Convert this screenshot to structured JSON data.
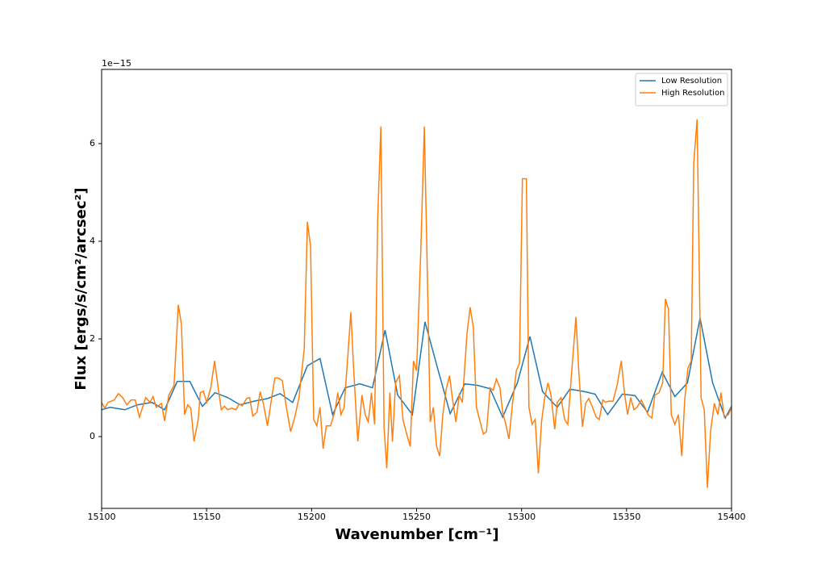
{
  "chart_data": {
    "type": "line",
    "xlabel": "Wavenumber [cm⁻¹]",
    "ylabel": "Flux [ergs/s/cm²/arcsec²]",
    "y_offset_label": "1e−15",
    "xlim": [
      15100,
      15400
    ],
    "xticks": [
      15100,
      15150,
      15200,
      15250,
      15300,
      15350,
      15400
    ],
    "ylim": [
      -1.47,
      7.52
    ],
    "yticks": [
      0,
      2,
      4,
      6
    ],
    "legend": "upper right",
    "grid": false,
    "series": [
      {
        "name": "Low Resolution",
        "color": "#1f77b4",
        "x": [
          15100,
          15104,
          15111,
          15117,
          15124,
          15130,
          15136,
          15142,
          15148,
          15154,
          15160,
          15166,
          15172,
          15179,
          15185,
          15191,
          15198,
          15204,
          15210,
          15216,
          15223,
          15229,
          15235,
          15241,
          15248,
          15254,
          15260,
          15266,
          15273,
          15279,
          15285,
          15291,
          15298,
          15304,
          15310,
          15317,
          15323,
          15329,
          15335,
          15341,
          15348,
          15354,
          15360,
          15367,
          15373,
          15379,
          15385,
          15391,
          15397,
          15400
        ],
        "values": [
          0.55,
          0.6,
          0.55,
          0.65,
          0.7,
          0.55,
          1.13,
          1.13,
          0.62,
          0.9,
          0.8,
          0.65,
          0.72,
          0.78,
          0.88,
          0.7,
          1.45,
          1.6,
          0.45,
          1.0,
          1.08,
          1.0,
          2.18,
          0.85,
          0.45,
          2.35,
          1.4,
          0.47,
          1.08,
          1.05,
          0.98,
          0.4,
          1.1,
          2.05,
          0.92,
          0.6,
          0.97,
          0.93,
          0.87,
          0.45,
          0.87,
          0.84,
          0.5,
          1.32,
          0.82,
          1.1,
          2.43,
          1.1,
          0.38,
          0.62
        ]
      },
      {
        "name": "High Resolution",
        "color": "#ff7f0e",
        "x": [
          15100,
          15101.5,
          15103,
          15106,
          15108,
          15110,
          15112,
          15114,
          15116,
          15118,
          15121,
          15123,
          15124.5,
          15126,
          15128.5,
          15130,
          15132,
          15134.5,
          15136.5,
          15138,
          15139.5,
          15141,
          15142.5,
          15144,
          15146,
          15147,
          15148.5,
          15150,
          15152,
          15153.8,
          15155.5,
          15157,
          15158.5,
          15160,
          15162,
          15164,
          15165.5,
          15167,
          15169,
          15170.5,
          15172,
          15174,
          15175.5,
          15177,
          15179,
          15181,
          15182.5,
          15184,
          15186,
          15188,
          15190,
          15192,
          15194,
          15196.5,
          15198,
          15199.5,
          15201,
          15202.5,
          15204,
          15205.5,
          15207,
          15209,
          15211,
          15212.5,
          15214,
          15215.5,
          15217,
          15218.7,
          15220,
          15222,
          15224,
          15225.5,
          15227,
          15228.5,
          15230,
          15231.5,
          15233,
          15234.5,
          15235.8,
          15237.3,
          15238.5,
          15240,
          15241.8,
          15243.5,
          15245.3,
          15247,
          15248.5,
          15250,
          15252,
          15253.7,
          15255,
          15256.5,
          15258,
          15259.5,
          15261,
          15262.5,
          15264,
          15265.7,
          15267,
          15268.7,
          15270.3,
          15271.8,
          15274,
          15275.5,
          15277,
          15278.5,
          15280,
          15281.8,
          15283.3,
          15285,
          15286.5,
          15288,
          15289.7,
          15291,
          15292.5,
          15294,
          15295.5,
          15297.5,
          15299,
          15300.4,
          15302.3,
          15303.5,
          15305,
          15306.5,
          15308,
          15309.5,
          15311,
          15312.6,
          15314,
          15315.8,
          15317,
          15318.8,
          15320.5,
          15322,
          15324,
          15325.9,
          15327.3,
          15329,
          15330.5,
          15332,
          15333.8,
          15335.5,
          15337,
          15338.7,
          15340,
          15341.8,
          15343.5,
          15345.5,
          15347.5,
          15349,
          15350.5,
          15352,
          15353.5,
          15355,
          15357,
          15358.7,
          15360.2,
          15362,
          15363.5,
          15365.5,
          15367.2,
          15368.5,
          15370,
          15371.3,
          15373,
          15374.7,
          15376.3,
          15377.7,
          15379.2,
          15380.8,
          15382,
          15383.6,
          15385.5,
          15387,
          15388.5,
          15390,
          15391.8,
          15393.5,
          15395,
          15396.5,
          15398.5,
          15400
        ],
        "values": [
          0.7,
          0.58,
          0.7,
          0.75,
          0.88,
          0.8,
          0.65,
          0.75,
          0.75,
          0.4,
          0.8,
          0.7,
          0.82,
          0.6,
          0.68,
          0.32,
          0.85,
          1.05,
          2.7,
          2.3,
          0.45,
          0.65,
          0.58,
          -0.1,
          0.35,
          0.9,
          0.93,
          0.7,
          1.0,
          1.55,
          1.0,
          0.55,
          0.62,
          0.55,
          0.58,
          0.55,
          0.67,
          0.63,
          0.78,
          0.8,
          0.42,
          0.5,
          0.92,
          0.68,
          0.22,
          0.8,
          1.2,
          1.2,
          1.15,
          0.6,
          0.1,
          0.4,
          0.8,
          1.8,
          4.4,
          3.9,
          0.35,
          0.22,
          0.6,
          -0.25,
          0.22,
          0.22,
          0.5,
          0.9,
          0.45,
          0.6,
          1.5,
          2.55,
          1.4,
          -0.1,
          0.85,
          0.45,
          0.3,
          0.9,
          0.25,
          4.5,
          6.35,
          0.2,
          -0.65,
          0.9,
          -0.1,
          1.1,
          1.25,
          0.35,
          0.05,
          -0.2,
          1.55,
          1.35,
          3.8,
          6.35,
          3.6,
          0.3,
          0.6,
          -0.2,
          -0.4,
          0.45,
          0.95,
          1.25,
          0.8,
          0.3,
          0.85,
          0.7,
          2.1,
          2.65,
          2.25,
          0.6,
          0.35,
          0.05,
          0.1,
          1.0,
          0.95,
          1.18,
          1.0,
          0.5,
          0.25,
          -0.05,
          0.6,
          1.35,
          1.5,
          5.28,
          5.28,
          0.6,
          0.25,
          0.35,
          -0.75,
          0.3,
          0.8,
          1.1,
          0.85,
          0.15,
          0.7,
          0.8,
          0.35,
          0.25,
          1.4,
          2.45,
          1.3,
          0.2,
          0.68,
          0.78,
          0.6,
          0.4,
          0.35,
          0.75,
          0.7,
          0.73,
          0.72,
          1.05,
          1.55,
          0.9,
          0.45,
          0.8,
          0.55,
          0.6,
          0.75,
          0.6,
          0.45,
          0.38,
          0.85,
          0.9,
          1.1,
          2.82,
          2.6,
          0.45,
          0.25,
          0.45,
          -0.4,
          0.75,
          1.4,
          1.55,
          5.6,
          6.5,
          0.8,
          0.55,
          -1.05,
          0.1,
          0.68,
          0.45,
          0.9,
          0.4,
          0.45,
          0.6
        ]
      }
    ]
  }
}
